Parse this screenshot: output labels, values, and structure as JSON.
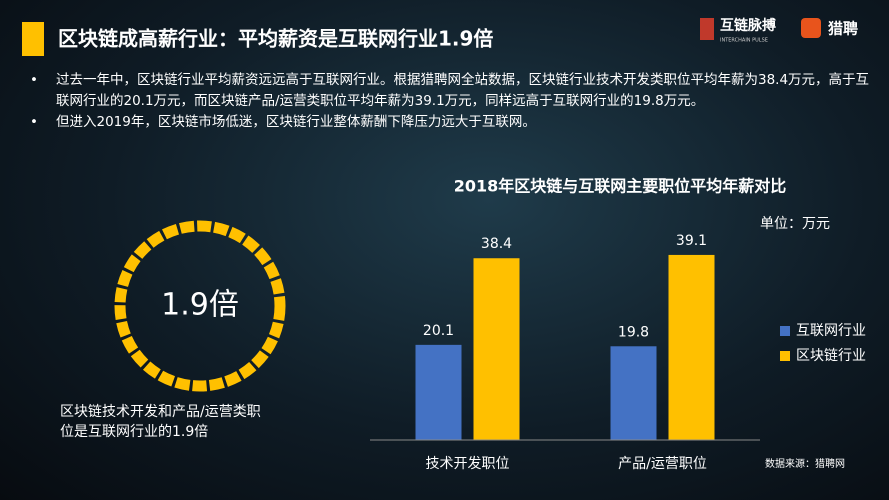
{
  "header": {
    "title": "区块链成高薪行业：平均薪资是互联网行业1.9倍"
  },
  "logos": {
    "brand": "互链脉搏",
    "brand_sub": "INTERCHAIN PULSE",
    "partner": "猎聘"
  },
  "bullets": [
    "过去一年中，区块链行业平均薪资远远高于互联网行业。根据猎聘网全站数据，区块链行业技术开发类职位平均年薪为38.4万元，高于互联网行业的20.1万元，而区块链产品/运营类职位平均年薪为39.1万元，同样远高于互联网行业的19.8万元。",
    "但进入2019年，区块链市场低迷，区块链行业整体薪酬下降压力远大于互联网。"
  ],
  "highlight": {
    "value": "1.9倍",
    "caption": [
      "区块链技术开发和产品/运营类职",
      "位是互联网行业的1.9倍"
    ]
  },
  "chart_data": {
    "type": "bar",
    "title": "2018年区块链与互联网主要职位平均年薪对比",
    "unit": "单位：万元",
    "categories": [
      "技术开发职位",
      "产品/运营职位"
    ],
    "series": [
      {
        "name": "互联网行业",
        "color": "#4472c4",
        "values": [
          20.1,
          19.8
        ]
      },
      {
        "name": "区块链行业",
        "color": "#ffc000",
        "values": [
          38.4,
          39.1
        ]
      }
    ],
    "ylim": [
      0,
      45
    ],
    "legend": "right"
  },
  "source": "数据来源：猎聘网"
}
